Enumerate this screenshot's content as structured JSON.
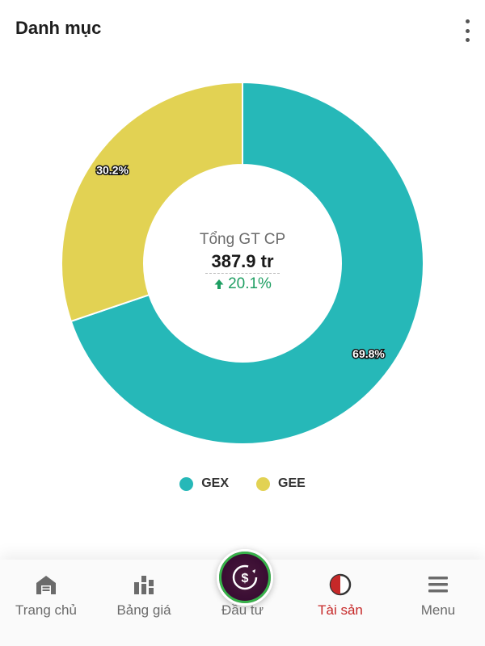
{
  "header": {
    "title": "Danh mục",
    "more_icon": "more-vertical-icon"
  },
  "summary": {
    "title": "Tổng GT CP",
    "value": "387.9 tr",
    "change": "20.1%",
    "change_icon": "arrow-up-icon",
    "change_color": "#1e9e62"
  },
  "chart_data": {
    "type": "pie",
    "donut": true,
    "categories": [
      "GEX",
      "GEE"
    ],
    "values": [
      69.8,
      30.2
    ],
    "labels": [
      "69.8%",
      "30.2%"
    ],
    "colors": [
      "#26b8b8",
      "#e2d253"
    ],
    "legend": "bottom"
  },
  "legend": {
    "items": [
      {
        "label": "GEX",
        "color": "#26b8b8"
      },
      {
        "label": "GEE",
        "color": "#e2d253"
      }
    ]
  },
  "nav": {
    "items": [
      {
        "label": "Trang chủ",
        "icon": "home-icon"
      },
      {
        "label": "Bảng giá",
        "icon": "price-board-icon"
      },
      {
        "label": "Đầu tư",
        "icon": "invest-coin-icon"
      },
      {
        "label": "Tài sản",
        "icon": "assets-pie-icon",
        "active": true
      },
      {
        "label": "Menu",
        "icon": "menu-icon"
      }
    ],
    "active_color": "#c62828"
  }
}
